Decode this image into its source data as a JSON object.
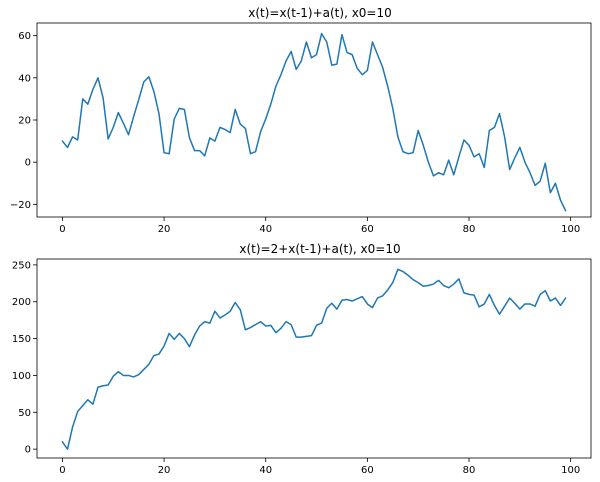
{
  "chart_data": [
    {
      "type": "line",
      "title": "x(t)=x(t-1)+a(t), x0=10",
      "xlabel": "",
      "ylabel": "",
      "xlim": [
        -5,
        104
      ],
      "ylim": [
        -26,
        66
      ],
      "xticks": [
        0,
        20,
        40,
        60,
        80,
        100
      ],
      "yticks": [
        -20,
        0,
        20,
        40,
        60
      ],
      "grid": false,
      "line_color": "#1f77b4",
      "series": [
        {
          "x": [
            0,
            1,
            2,
            3,
            4,
            5,
            6,
            7,
            8,
            9,
            10,
            11,
            12,
            13,
            14,
            15,
            16,
            17,
            18,
            19,
            20,
            21,
            22,
            23,
            24,
            25,
            26,
            27,
            28,
            29,
            30,
            31,
            32,
            33,
            34,
            35,
            36,
            37,
            38,
            39,
            40,
            41,
            42,
            43,
            44,
            45,
            46,
            47,
            48,
            49,
            50,
            51,
            52,
            53,
            54,
            55,
            56,
            57,
            58,
            59,
            60,
            61,
            62,
            63,
            64,
            65,
            66,
            67,
            68,
            69,
            70,
            71,
            72,
            73,
            74,
            75,
            76,
            77,
            78,
            79,
            80,
            81,
            82,
            83,
            84,
            85,
            86,
            87,
            88,
            89,
            90,
            91,
            92,
            93,
            94,
            95,
            96,
            97,
            98,
            99
          ],
          "y": [
            10,
            7,
            12,
            10.5,
            30,
            27.5,
            34.5,
            40,
            30.5,
            11,
            16.5,
            23.5,
            18.5,
            13,
            21.5,
            29.5,
            38,
            40.5,
            33.5,
            23,
            4.5,
            4,
            20.5,
            25.5,
            25,
            11.5,
            5.5,
            5.5,
            3,
            11.5,
            10,
            16.5,
            15.5,
            14,
            25,
            18,
            16,
            4,
            5,
            14.5,
            20.5,
            27.5,
            36,
            41.5,
            48,
            52.5,
            44,
            48,
            57,
            49.5,
            51,
            61,
            57,
            46,
            46.5,
            60.5,
            52,
            51,
            44.5,
            41.5,
            43.5,
            57,
            51,
            45,
            36,
            25.5,
            12,
            5,
            4,
            4.5,
            15,
            8,
            0,
            -6.5,
            -5,
            -6,
            1,
            -6,
            2.5,
            10.5,
            8,
            2.5,
            4,
            -2.5,
            15,
            16.5,
            23,
            12,
            -3.5,
            2,
            7,
            0,
            -5,
            -11,
            -9,
            -0.5,
            -14.5,
            -10,
            -18,
            -23
          ]
        }
      ]
    },
    {
      "type": "line",
      "title": "x(t)=2+x(t-1)+a(t), x0=10",
      "xlabel": "",
      "ylabel": "",
      "xlim": [
        -5,
        104
      ],
      "ylim": [
        -12,
        258
      ],
      "xticks": [
        0,
        20,
        40,
        60,
        80,
        100
      ],
      "yticks": [
        0,
        50,
        100,
        150,
        200,
        250
      ],
      "grid": false,
      "line_color": "#1f77b4",
      "series": [
        {
          "x": [
            0,
            1,
            2,
            3,
            4,
            5,
            6,
            7,
            8,
            9,
            10,
            11,
            12,
            13,
            14,
            15,
            16,
            17,
            18,
            19,
            20,
            21,
            22,
            23,
            24,
            25,
            26,
            27,
            28,
            29,
            30,
            31,
            32,
            33,
            34,
            35,
            36,
            37,
            38,
            39,
            40,
            41,
            42,
            43,
            44,
            45,
            46,
            47,
            48,
            49,
            50,
            51,
            52,
            53,
            54,
            55,
            56,
            57,
            58,
            59,
            60,
            61,
            62,
            63,
            64,
            65,
            66,
            67,
            68,
            69,
            70,
            71,
            72,
            73,
            74,
            75,
            76,
            77,
            78,
            79,
            80,
            81,
            82,
            83,
            84,
            85,
            86,
            87,
            88,
            89,
            90,
            91,
            92,
            93,
            94,
            95,
            96,
            97,
            98,
            99
          ],
          "y": [
            10,
            0,
            30,
            51,
            59,
            67,
            61,
            84,
            86,
            87,
            99,
            105,
            100,
            100,
            98,
            101,
            108,
            115,
            127,
            129,
            140,
            157,
            149,
            157,
            150,
            139,
            155,
            167,
            173,
            171,
            187,
            178,
            182,
            187,
            199,
            189,
            162,
            165,
            169,
            173,
            167,
            168,
            158,
            164,
            173,
            169,
            152,
            152,
            153,
            154,
            168,
            171,
            191,
            198,
            190,
            202,
            203,
            201,
            204,
            207,
            197,
            192,
            205,
            208,
            216,
            226,
            244,
            241,
            236,
            230,
            226,
            221,
            222,
            224,
            229,
            222,
            219,
            224,
            231,
            212,
            210,
            209,
            193,
            197,
            210,
            195,
            183,
            194,
            205,
            198,
            190,
            197,
            197,
            194,
            210,
            215,
            201,
            205,
            195,
            205
          ]
        }
      ]
    }
  ]
}
